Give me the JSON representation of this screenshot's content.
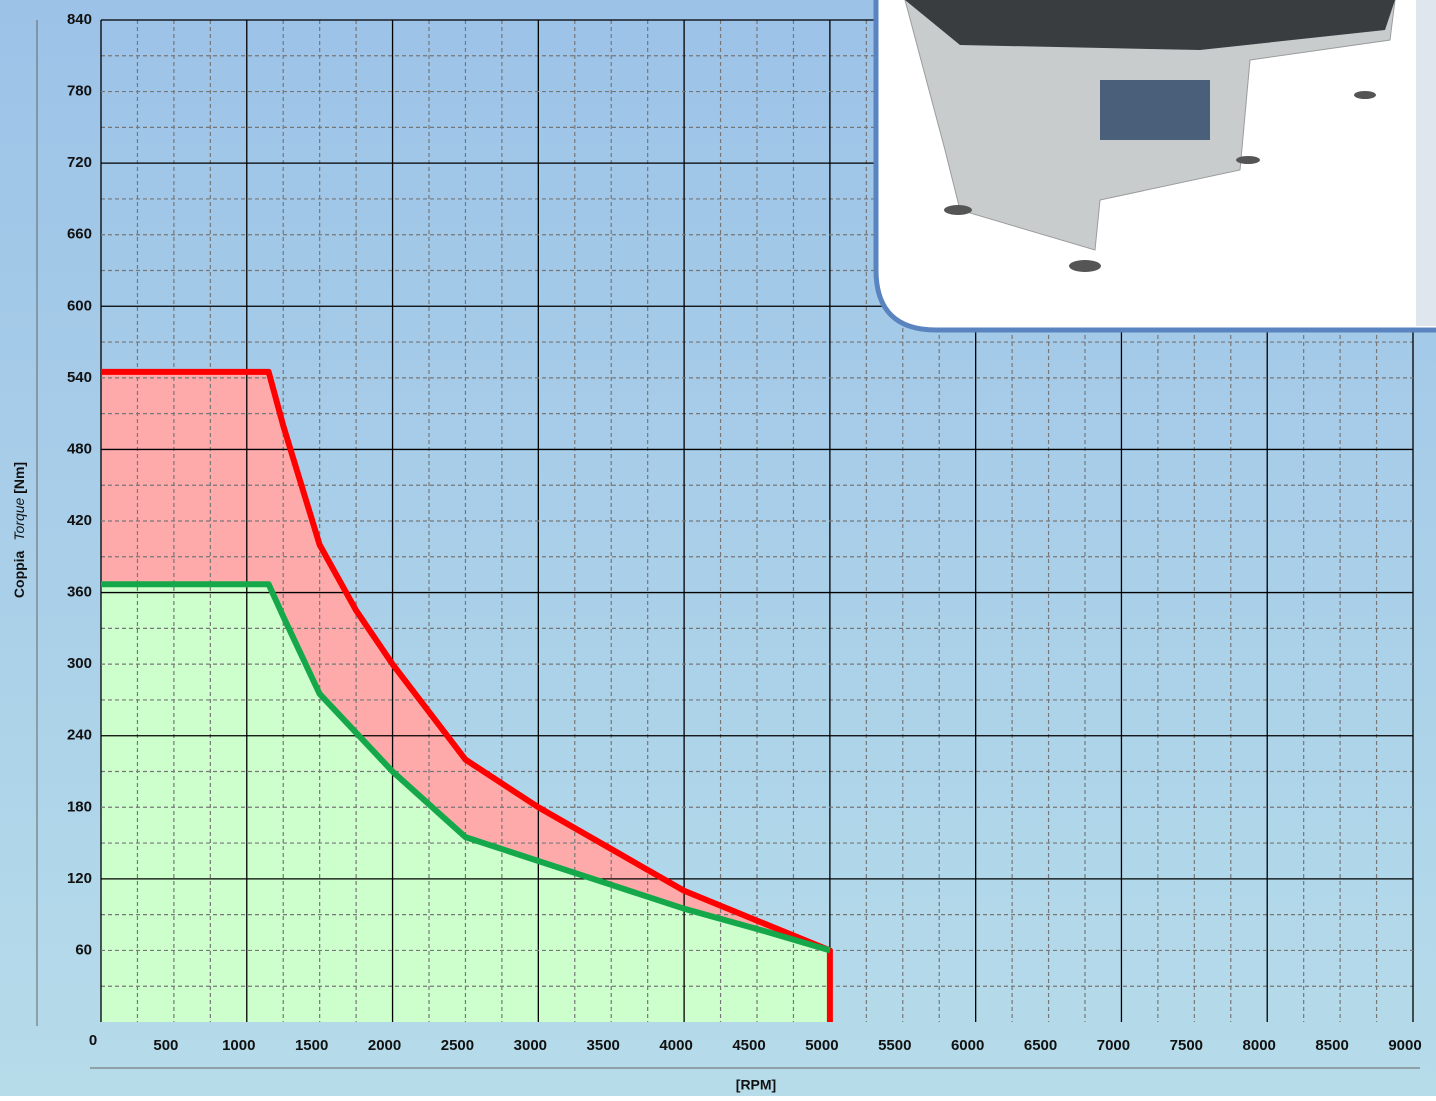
{
  "chart_data": {
    "type": "area",
    "ylabel_parts": [
      "Coppia",
      "Torque",
      "[Nm]"
    ],
    "xlabel": "[RPM]",
    "xlim": [
      0,
      9000
    ],
    "ylim": [
      0,
      840
    ],
    "xticks": [
      0,
      500,
      1000,
      1500,
      2000,
      2500,
      3000,
      3500,
      4000,
      4500,
      5000,
      5500,
      6000,
      6500,
      7000,
      7500,
      8000,
      8500,
      9000
    ],
    "yticks": [
      60,
      120,
      180,
      240,
      300,
      360,
      420,
      480,
      540,
      600,
      660,
      720,
      780,
      840
    ],
    "grid": true,
    "series": [
      {
        "color": "#ff0000",
        "fill": "#ffaaaa",
        "x": [
          0,
          1150,
          1250,
          1500,
          1750,
          2000,
          2500,
          3000,
          3500,
          4000,
          4500,
          5000,
          5000
        ],
        "values": [
          545,
          545,
          500,
          400,
          345,
          300,
          220,
          180,
          145,
          110,
          85,
          60,
          0
        ]
      },
      {
        "color": "#14a84a",
        "fill": "#ccffcc",
        "x": [
          0,
          1150,
          1250,
          1500,
          2000,
          2500,
          3000,
          3500,
          4000,
          4500,
          5000
        ],
        "values": [
          367,
          367,
          340,
          275,
          210,
          155,
          135,
          115,
          95,
          78,
          60
        ]
      }
    ]
  }
}
